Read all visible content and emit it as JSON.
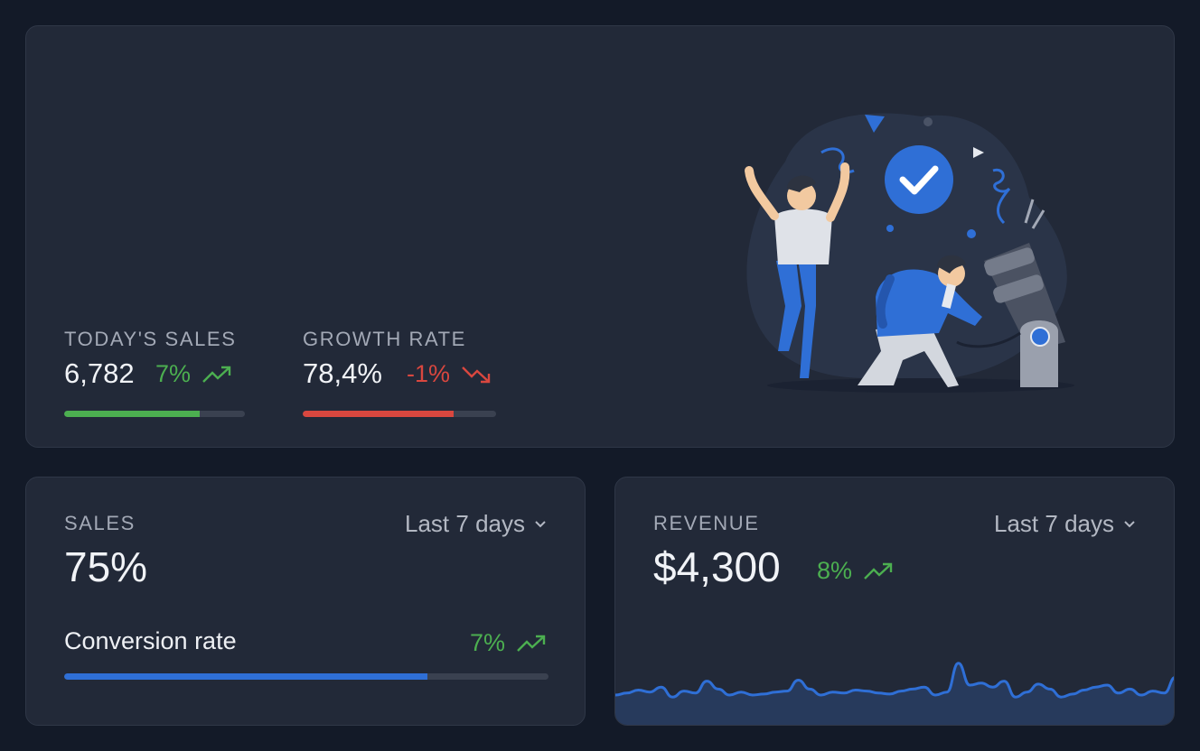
{
  "hero": {
    "todays_sales": {
      "label": "TODAY'S SALES",
      "value": "6,782",
      "delta": "7%",
      "direction": "up",
      "progress": 0.75,
      "bar_color": "#4caf50"
    },
    "growth_rate": {
      "label": "GROWTH RATE",
      "value": "78,4%",
      "delta": "-1%",
      "direction": "down",
      "progress": 0.78,
      "bar_color": "#d9473f"
    },
    "illustration": {
      "icons": [
        "check-circle-icon",
        "celebration-illustration",
        "cannon-illustration"
      ]
    }
  },
  "sales": {
    "label": "SALES",
    "value": "75%",
    "range": "Last 7 days",
    "conversion_label": "Conversion rate",
    "conversion_delta": "7%",
    "conversion_progress": 0.75,
    "bar_color": "#2f6fd6"
  },
  "revenue": {
    "label": "REVENUE",
    "value": "$4,300",
    "delta": "8%",
    "range": "Last 7 days",
    "line_color": "#2f6fd6",
    "area_color": "#273a5c"
  },
  "colors": {
    "up": "#4caf50",
    "down": "#d9473f",
    "accent": "#2f6fd6"
  },
  "chart_data": {
    "type": "area",
    "title": "",
    "xlabel": "",
    "ylabel": "",
    "grid": false,
    "legend": "none",
    "ylim": [
      0,
      100
    ],
    "series": [
      {
        "values": [
          30,
          32,
          35,
          33,
          38,
          28,
          34,
          32,
          44,
          36,
          30,
          33,
          30,
          31,
          33,
          34,
          45,
          36,
          30,
          33,
          32,
          35,
          34,
          32,
          31,
          34,
          36,
          38,
          30,
          33,
          62,
          40,
          42,
          38,
          44,
          28,
          33,
          41,
          36,
          28,
          31,
          35,
          38,
          40,
          32,
          36,
          30,
          34,
          32,
          48
        ]
      }
    ]
  }
}
